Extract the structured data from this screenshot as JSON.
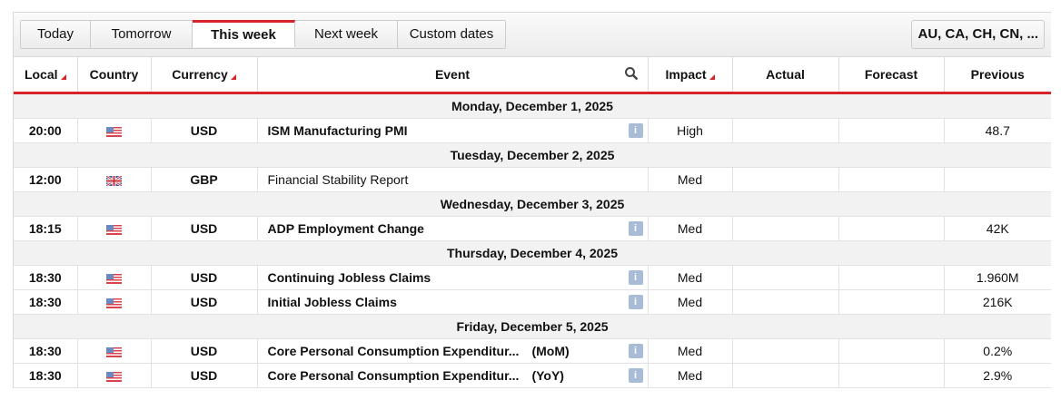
{
  "tabs": [
    {
      "label": "Today"
    },
    {
      "label": "Tomorrow"
    },
    {
      "label": "This week",
      "active": true
    },
    {
      "label": "Next week"
    },
    {
      "label": "Custom dates"
    }
  ],
  "country_filter": "AU, CA, CH, CN, ...",
  "columns": {
    "local": "Local",
    "country": "Country",
    "currency": "Currency",
    "event": "Event",
    "impact": "Impact",
    "actual": "Actual",
    "forecast": "Forecast",
    "previous": "Previous"
  },
  "accent_color": "#d9232a",
  "days": [
    {
      "date": "Monday, December 1, 2025",
      "events": [
        {
          "time": "20:00",
          "country": "us-flag",
          "currency": "USD",
          "event": "ISM Manufacturing PMI",
          "suffix": "",
          "bold": true,
          "info": true,
          "impact": "High",
          "actual": "",
          "forecast": "",
          "previous": "48.7"
        }
      ]
    },
    {
      "date": "Tuesday, December 2, 2025",
      "events": [
        {
          "time": "12:00",
          "country": "uk-flag",
          "currency": "GBP",
          "event": "Financial Stability Report",
          "suffix": "",
          "bold": false,
          "info": false,
          "impact": "Med",
          "actual": "",
          "forecast": "",
          "previous": ""
        }
      ]
    },
    {
      "date": "Wednesday, December 3, 2025",
      "events": [
        {
          "time": "18:15",
          "country": "us-flag",
          "currency": "USD",
          "event": "ADP Employment Change",
          "suffix": "",
          "bold": true,
          "info": true,
          "impact": "Med",
          "actual": "",
          "forecast": "",
          "previous": "42K"
        }
      ]
    },
    {
      "date": "Thursday, December 4, 2025",
      "events": [
        {
          "time": "18:30",
          "country": "us-flag",
          "currency": "USD",
          "event": "Continuing Jobless Claims",
          "suffix": "",
          "bold": true,
          "info": true,
          "impact": "Med",
          "actual": "",
          "forecast": "",
          "previous": "1.960M"
        },
        {
          "time": "18:30",
          "country": "us-flag",
          "currency": "USD",
          "event": "Initial Jobless Claims",
          "suffix": "",
          "bold": true,
          "info": true,
          "impact": "Med",
          "actual": "",
          "forecast": "",
          "previous": "216K"
        }
      ]
    },
    {
      "date": "Friday, December 5, 2025",
      "events": [
        {
          "time": "18:30",
          "country": "us-flag",
          "currency": "USD",
          "event": "Core Personal Consumption Expenditur...",
          "suffix": "(MoM)",
          "bold": true,
          "info": true,
          "impact": "Med",
          "actual": "",
          "forecast": "",
          "previous": "0.2%"
        },
        {
          "time": "18:30",
          "country": "us-flag",
          "currency": "USD",
          "event": "Core Personal Consumption Expenditur...",
          "suffix": "(YoY)",
          "bold": true,
          "info": true,
          "impact": "Med",
          "actual": "",
          "forecast": "",
          "previous": "2.9%"
        }
      ]
    }
  ]
}
